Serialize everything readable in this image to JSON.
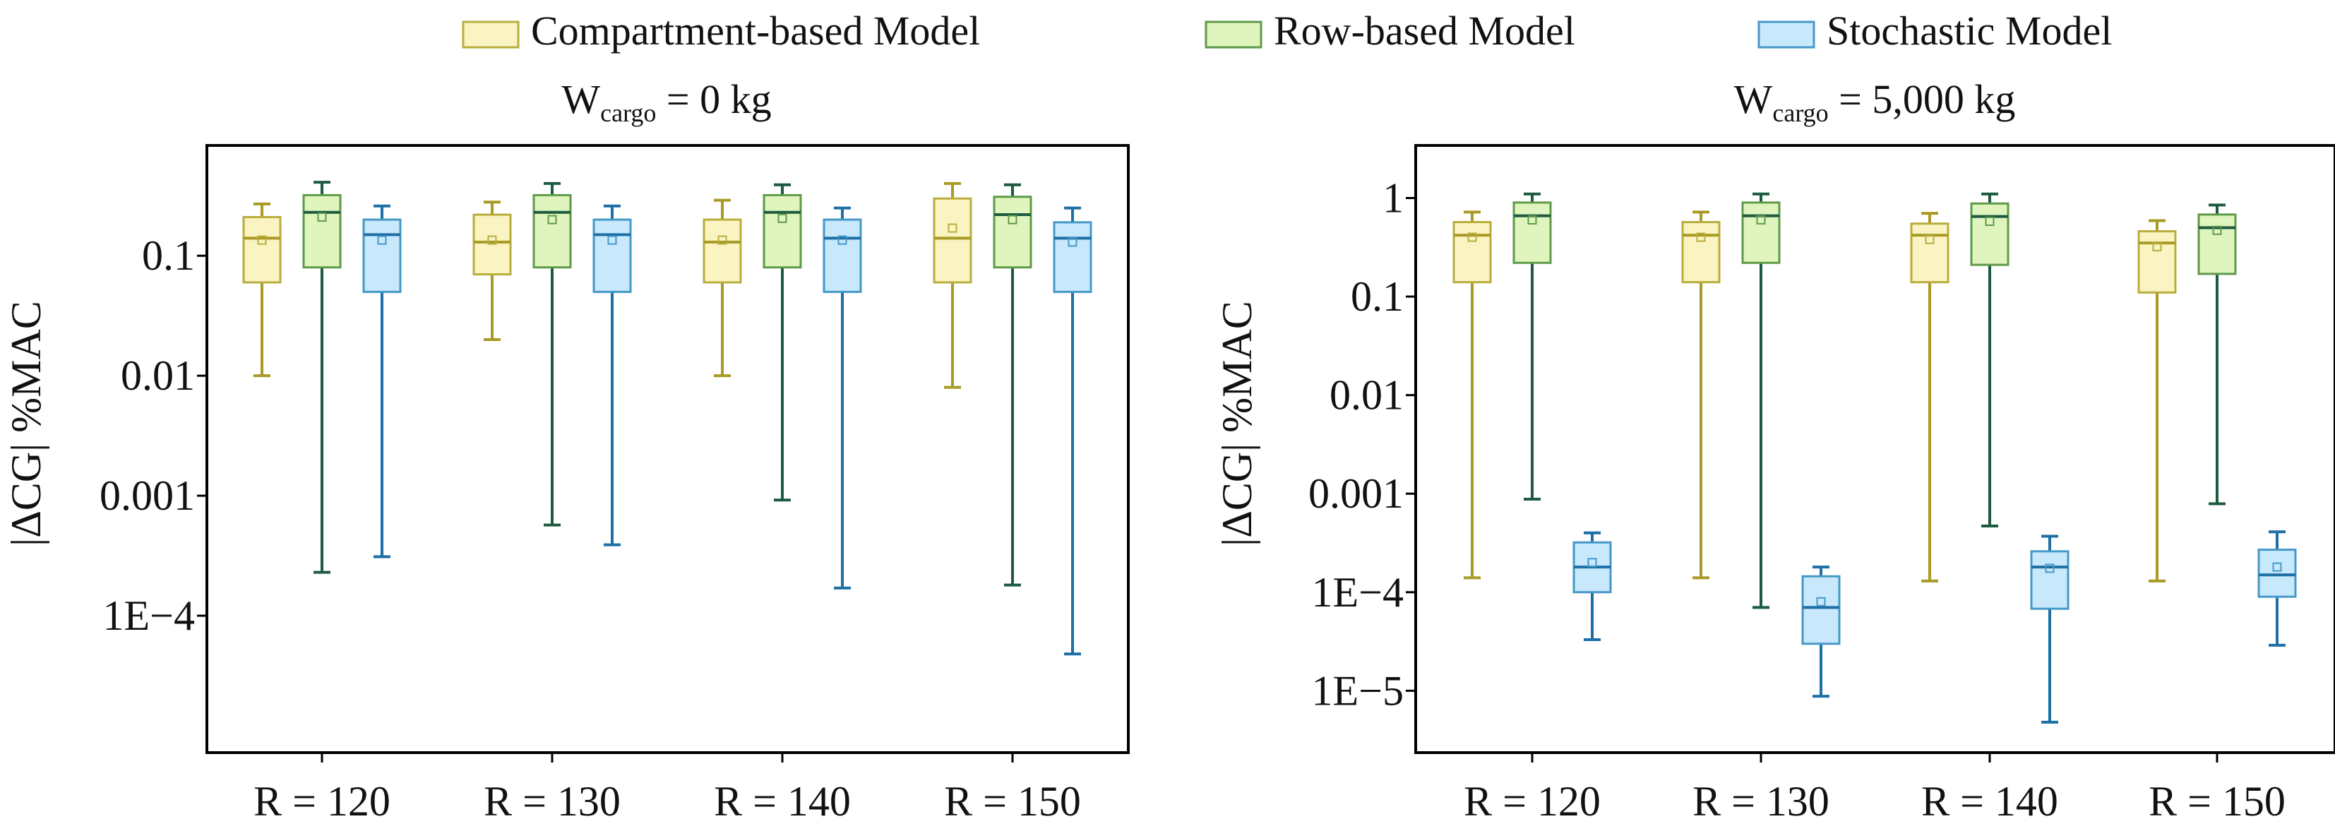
{
  "chart_data": {
    "type": "boxplot",
    "yscale": "log",
    "legend": {
      "placement": "top-center",
      "entries": [
        {
          "label": "Compartment-based Model",
          "fill": "#faf4c2",
          "stroke": "#b9ad3d"
        },
        {
          "label": "Row-based Model",
          "fill": "#dff5bd",
          "stroke": "#5e9a4a"
        },
        {
          "label": "Stochastic Model",
          "fill": "#c8e8fb",
          "stroke": "#4598c8"
        }
      ]
    },
    "series_colors": {
      "Compartment-based Model": {
        "whisker": "#a89a25"
      },
      "Row-based Model": {
        "whisker": "#1d5a3f"
      },
      "Stochastic Model": {
        "whisker": "#1d6fa5"
      }
    },
    "ylabel": "|ΔCG| %MAC",
    "categories": [
      "R = 120",
      "R = 130",
      "R = 140",
      "R = 150"
    ],
    "panels": [
      {
        "title": {
          "prefix": "W",
          "subscript": "cargo",
          "suffix": " = 0 kg"
        },
        "ylabel": "|ΔCG| %MAC",
        "ylim": [
          1e-05,
          0.6
        ],
        "yticks": [
          0.0001,
          0.001,
          0.01,
          0.1
        ],
        "ytick_labels": [
          "1E−4",
          "0.001",
          "0.01",
          "0.1"
        ],
        "groups": [
          {
            "category": "R = 120",
            "boxes": [
              {
                "series": "Compartment-based Model",
                "whisker_low": 0.01,
                "q1": 0.06,
                "median": 0.14,
                "q3": 0.21,
                "whisker_high": 0.27,
                "mean": 0.135
              },
              {
                "series": "Row-based Model",
                "whisker_low": 0.00023,
                "q1": 0.08,
                "median": 0.23,
                "q3": 0.32,
                "whisker_high": 0.41,
                "mean": 0.21
              },
              {
                "series": "Stochastic Model",
                "whisker_low": 0.00031,
                "q1": 0.05,
                "median": 0.15,
                "q3": 0.2,
                "whisker_high": 0.26,
                "mean": 0.135
              }
            ]
          },
          {
            "category": "R = 130",
            "boxes": [
              {
                "series": "Compartment-based Model",
                "whisker_low": 0.02,
                "q1": 0.07,
                "median": 0.13,
                "q3": 0.22,
                "whisker_high": 0.28,
                "mean": 0.135
              },
              {
                "series": "Row-based Model",
                "whisker_low": 0.00057,
                "q1": 0.08,
                "median": 0.23,
                "q3": 0.32,
                "whisker_high": 0.4,
                "mean": 0.2
              },
              {
                "series": "Stochastic Model",
                "whisker_low": 0.00039,
                "q1": 0.05,
                "median": 0.15,
                "q3": 0.2,
                "whisker_high": 0.26,
                "mean": 0.135
              }
            ]
          },
          {
            "category": "R = 140",
            "boxes": [
              {
                "series": "Compartment-based Model",
                "whisker_low": 0.01,
                "q1": 0.06,
                "median": 0.13,
                "q3": 0.2,
                "whisker_high": 0.29,
                "mean": 0.135
              },
              {
                "series": "Row-based Model",
                "whisker_low": 0.00092,
                "q1": 0.08,
                "median": 0.23,
                "q3": 0.32,
                "whisker_high": 0.39,
                "mean": 0.205
              },
              {
                "series": "Stochastic Model",
                "whisker_low": 0.00017,
                "q1": 0.05,
                "median": 0.14,
                "q3": 0.2,
                "whisker_high": 0.25,
                "mean": 0.135
              }
            ]
          },
          {
            "category": "R = 150",
            "boxes": [
              {
                "series": "Compartment-based Model",
                "whisker_low": 0.008,
                "q1": 0.06,
                "median": 0.14,
                "q3": 0.3,
                "whisker_high": 0.4,
                "mean": 0.17
              },
              {
                "series": "Row-based Model",
                "whisker_low": 0.00018,
                "q1": 0.08,
                "median": 0.22,
                "q3": 0.31,
                "whisker_high": 0.39,
                "mean": 0.2
              },
              {
                "series": "Stochastic Model",
                "whisker_low": 4.8e-05,
                "q1": 0.05,
                "median": 0.14,
                "q3": 0.19,
                "whisker_high": 0.25,
                "mean": 0.13
              }
            ]
          }
        ]
      },
      {
        "title": {
          "prefix": "W",
          "subscript": "cargo",
          "suffix": " = 5,000 kg"
        },
        "ylabel": "|ΔCG| %MAC",
        "ylim": [
          3.5e-06,
          2.3
        ],
        "yticks": [
          1e-05,
          0.0001,
          0.001,
          0.01,
          0.1,
          1
        ],
        "ytick_labels": [
          "1E−5",
          "1E−4",
          "0.001",
          "0.01",
          "0.1",
          "1"
        ],
        "groups": [
          {
            "category": "R = 120",
            "boxes": [
              {
                "series": "Compartment-based Model",
                "whisker_low": 0.00014,
                "q1": 0.14,
                "median": 0.42,
                "q3": 0.57,
                "whisker_high": 0.72,
                "mean": 0.4
              },
              {
                "series": "Row-based Model",
                "whisker_low": 0.00088,
                "q1": 0.22,
                "median": 0.66,
                "q3": 0.9,
                "whisker_high": 1.1,
                "mean": 0.6
              },
              {
                "series": "Stochastic Model",
                "whisker_low": 3.3e-05,
                "q1": 0.0001,
                "median": 0.00018,
                "q3": 0.00032,
                "whisker_high": 0.0004,
                "mean": 0.0002
              }
            ]
          },
          {
            "category": "R = 130",
            "boxes": [
              {
                "series": "Compartment-based Model",
                "whisker_low": 0.00014,
                "q1": 0.14,
                "median": 0.42,
                "q3": 0.57,
                "whisker_high": 0.72,
                "mean": 0.4
              },
              {
                "series": "Row-based Model",
                "whisker_low": 7e-05,
                "q1": 0.22,
                "median": 0.66,
                "q3": 0.9,
                "whisker_high": 1.1,
                "mean": 0.6
              },
              {
                "series": "Stochastic Model",
                "whisker_low": 8.8e-06,
                "q1": 3e-05,
                "median": 7e-05,
                "q3": 0.000145,
                "whisker_high": 0.00018,
                "mean": 8e-05
              }
            ]
          },
          {
            "category": "R = 140",
            "boxes": [
              {
                "series": "Compartment-based Model",
                "whisker_low": 0.00013,
                "q1": 0.14,
                "median": 0.42,
                "q3": 0.55,
                "whisker_high": 0.7,
                "mean": 0.38
              },
              {
                "series": "Row-based Model",
                "whisker_low": 0.00047,
                "q1": 0.21,
                "median": 0.65,
                "q3": 0.88,
                "whisker_high": 1.1,
                "mean": 0.58
              },
              {
                "series": "Stochastic Model",
                "whisker_low": 4.8e-06,
                "q1": 6.8e-05,
                "median": 0.00018,
                "q3": 0.00026,
                "whisker_high": 0.00037,
                "mean": 0.000175
              }
            ]
          },
          {
            "category": "R = 150",
            "boxes": [
              {
                "series": "Compartment-based Model",
                "whisker_low": 0.00013,
                "q1": 0.11,
                "median": 0.35,
                "q3": 0.46,
                "whisker_high": 0.59,
                "mean": 0.32
              },
              {
                "series": "Row-based Model",
                "whisker_low": 0.00079,
                "q1": 0.17,
                "median": 0.5,
                "q3": 0.68,
                "whisker_high": 0.85,
                "mean": 0.47
              },
              {
                "series": "Stochastic Model",
                "whisker_low": 2.9e-05,
                "q1": 9e-05,
                "median": 0.00015,
                "q3": 0.00027,
                "whisker_high": 0.00041,
                "mean": 0.00018
              }
            ]
          }
        ]
      }
    ]
  }
}
